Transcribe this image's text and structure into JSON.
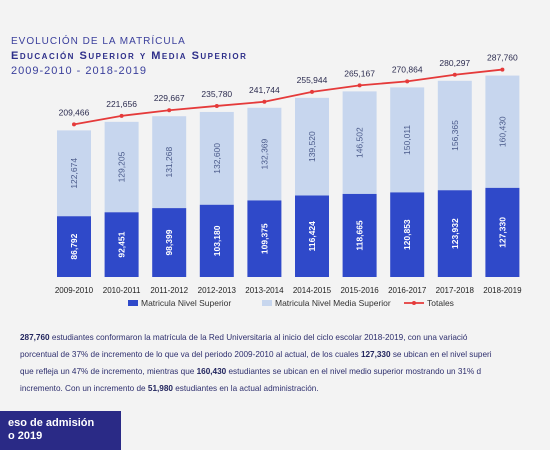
{
  "titles": {
    "line1": "EVOLUCIÓN DE LA MATRÍCULA",
    "line2": "Educación Superior y Media Superior",
    "line3": "2009-2010  -  2018-2019"
  },
  "chart_data": {
    "type": "bar",
    "stacked": true,
    "categories": [
      "2009-2010",
      "2010-2011",
      "2011-2012",
      "2012-2013",
      "2013-2014",
      "2014-2015",
      "2015-2016",
      "2016-2017",
      "2017-2018",
      "2018-2019"
    ],
    "series": [
      {
        "name": "Matricula Nivel Superior",
        "color": "#2f49c9",
        "values": [
          86792,
          92451,
          98399,
          103180,
          109375,
          116424,
          118665,
          120853,
          123932,
          127330
        ]
      },
      {
        "name": "Matricula Nivel Media Superior",
        "color": "#c7d6ee",
        "values": [
          122674,
          129205,
          131268,
          132600,
          132369,
          139520,
          146502,
          150011,
          156365,
          160430
        ]
      }
    ],
    "line": {
      "name": "Totales",
      "color": "#e53a3a",
      "values": [
        209466,
        221656,
        229667,
        235780,
        241744,
        255944,
        265167,
        270864,
        280297,
        287760
      ]
    },
    "total_labels": [
      "209,466",
      "221,656",
      "229,667",
      "235,780",
      "241,744",
      "255,944",
      "265,167",
      "270,864",
      "280,297",
      "287,760"
    ],
    "bottom_labels": [
      "86,792",
      "92,451",
      "98,399",
      "103,180",
      "109,375",
      "116,424",
      "118,665",
      "120,853",
      "123,932",
      "127,330"
    ],
    "top_labels": [
      "122,674",
      "129,205",
      "131,268",
      "132,600",
      "132,369",
      "139,520",
      "146,502",
      "150,011",
      "156,365",
      "160,430"
    ],
    "legend_position": "bottom",
    "grid": false
  },
  "paragraph": {
    "l1a": "287,760",
    "l1b": " estudiantes conformaron la matrícula de la Red Universitaria al inicio del ciclo escolar 2018-2019, con una variació",
    "l2a": "porcentual de 37% de incremento de lo que va del periodo 2009-2010 al actual, de los cuales ",
    "l2b": "127,330",
    "l2c": " se ubican en el nivel superi",
    "l3a": "que refleja un 47% de incremento, mientras que ",
    "l3b": "160,430",
    "l3c": " estudiantes se ubican en el nivel medio superior mostrando un 31% d",
    "l4a": "incremento. Con un incremento de ",
    "l4b": "51,980",
    "l4c": " estudiantes en la actual administración."
  },
  "badge": {
    "line1": "eso de admisión",
    "line2": "o 2019"
  }
}
